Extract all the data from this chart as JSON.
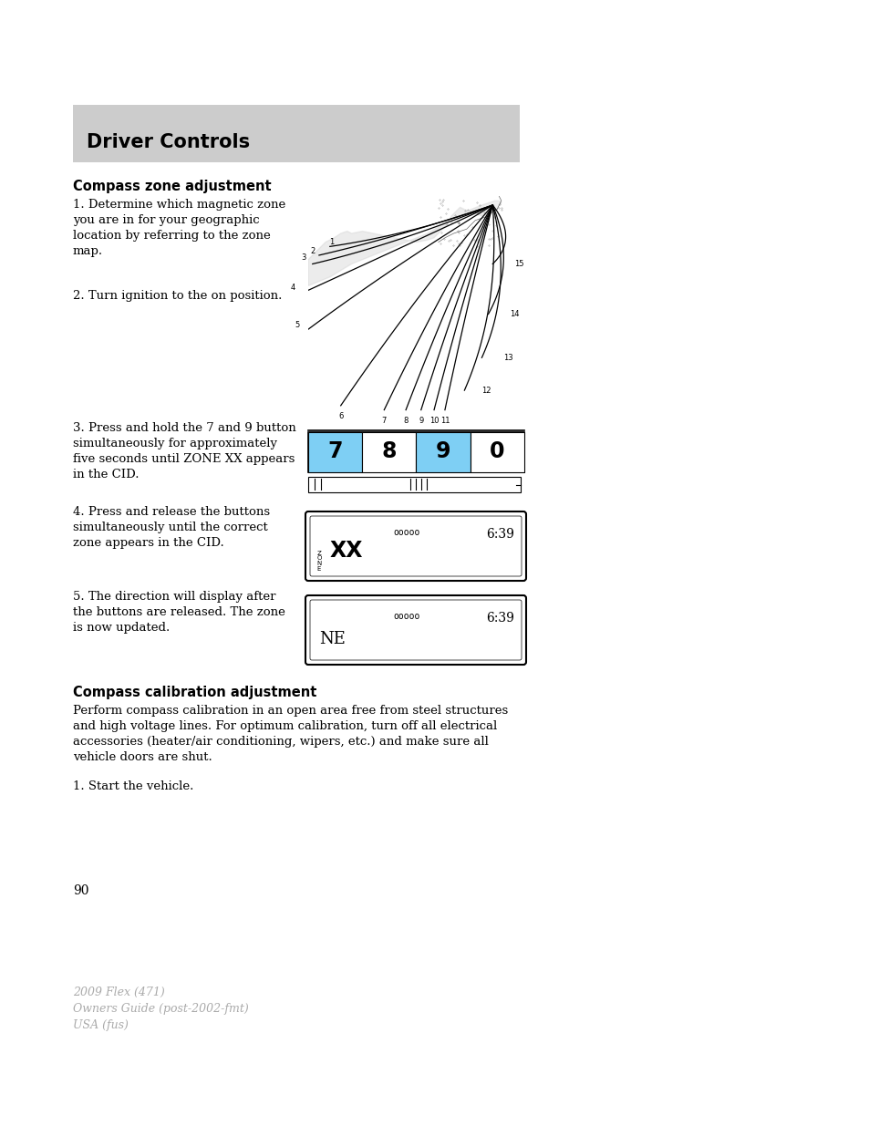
{
  "bg_color": "#ffffff",
  "header_bg": "#cccccc",
  "header_text": "Driver Controls",
  "header_text_color": "#000000",
  "header_font_size": 15,
  "section1_title": "Compass zone adjustment",
  "section2_title": "Compass calibration adjustment",
  "step1_text": "1. Determine which magnetic zone\nyou are in for your geographic\nlocation by referring to the zone\nmap.",
  "step2_text": "2. Turn ignition to the on position.",
  "step3_text": "3. Press and hold the 7 and 9 button\nsimultaneously for approximately\nfive seconds until ZONE XX appears\nin the CID.",
  "step4_text": "4. Press and release the buttons\nsimultaneously until the correct\nzone appears in the CID.",
  "step5_text": "5. The direction will display after\nthe buttons are released. The zone\nis now updated.",
  "calibration_text": "Perform compass calibration in an open area free from steel structures\nand high voltage lines. For optimum calibration, turn off all electrical\naccessories (heater/air conditioning, wipers, etc.) and make sure all\nvehicle doors are shut.",
  "start_text": "1. Start the vehicle.",
  "page_number": "90",
  "footer_line1": "2009 Flex (471)",
  "footer_line2": "Owners Guide (post-2002-fmt)",
  "footer_line3": "USA (fus)",
  "footer_color": "#aaaaaa",
  "button_7_color": "#7ecff4",
  "button_9_color": "#7ecff4",
  "button_8_color": "#ffffff",
  "button_0_color": "#ffffff",
  "text_font_size": 9.5,
  "bold_font_size": 10.5
}
